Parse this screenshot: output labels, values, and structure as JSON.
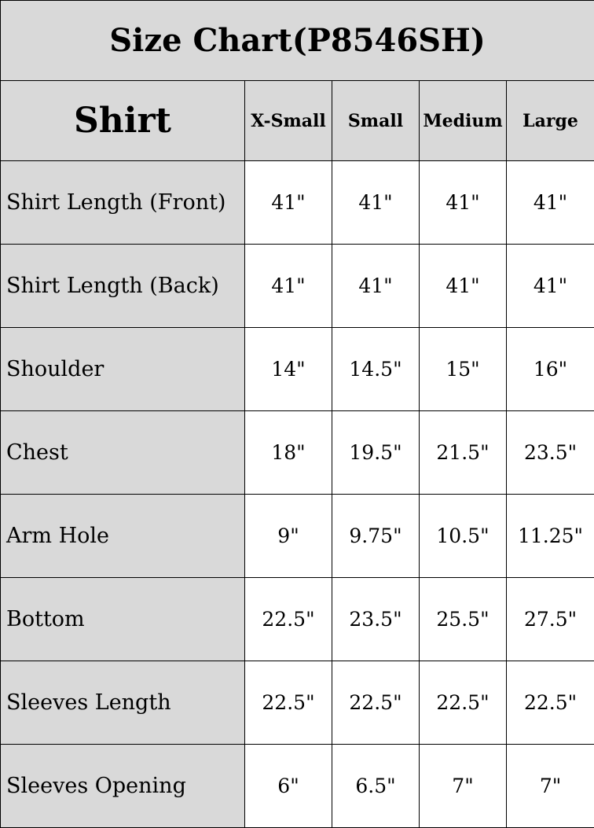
{
  "title": "Size Chart(P8546SH)",
  "header": {
    "category": "Shirt",
    "sizes": [
      "X-Small",
      "Small",
      "Medium",
      "Large"
    ]
  },
  "rows": [
    {
      "label": "Shirt Length (Front)",
      "values": [
        "41\"",
        "41\"",
        "41\"",
        "41\""
      ]
    },
    {
      "label": "Shirt Length (Back)",
      "values": [
        "41\"",
        "41\"",
        "41\"",
        "41\""
      ]
    },
    {
      "label": "Shoulder",
      "values": [
        "14\"",
        "14.5\"",
        "15\"",
        "16\""
      ]
    },
    {
      "label": "Chest",
      "values": [
        "18\"",
        "19.5\"",
        "21.5\"",
        "23.5\""
      ]
    },
    {
      "label": "Arm Hole",
      "values": [
        "9\"",
        "9.75\"",
        "10.5\"",
        "11.25\""
      ]
    },
    {
      "label": "Bottom",
      "values": [
        "22.5\"",
        "23.5\"",
        "25.5\"",
        "27.5\""
      ]
    },
    {
      "label": "Sleeves Length",
      "values": [
        "22.5\"",
        "22.5\"",
        "22.5\"",
        "22.5\""
      ]
    },
    {
      "label": "Sleeves Opening",
      "values": [
        "6\"",
        "6.5\"",
        "7\"",
        "7\""
      ]
    }
  ],
  "colors": {
    "header_bg": "#d9d9d9",
    "cell_bg": "#ffffff",
    "border": "#000000"
  }
}
